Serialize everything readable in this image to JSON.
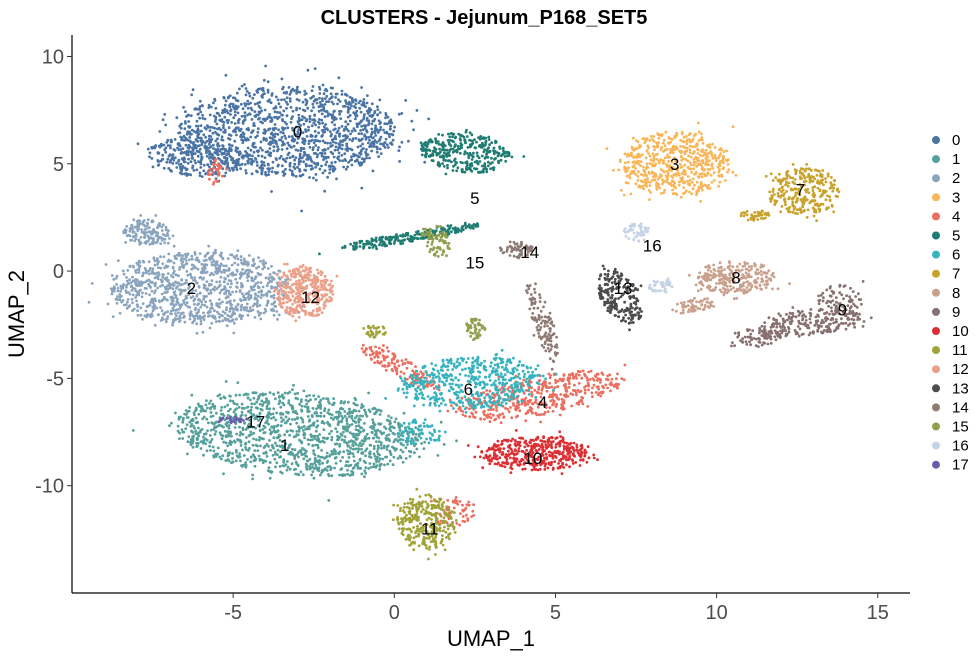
{
  "chart_data": {
    "type": "scatter",
    "title": "CLUSTERS - Jejunum_P168_SET5",
    "xlabel": "UMAP_1",
    "ylabel": "UMAP_2",
    "xlim": [
      -10,
      16
    ],
    "ylim": [
      -15,
      11
    ],
    "xticks": [
      -5,
      0,
      5,
      10,
      15
    ],
    "yticks": [
      10,
      5,
      0,
      -5,
      -10
    ],
    "grid": false,
    "legend_position": "right",
    "clusters": [
      {
        "name": "0",
        "color": "#4A74A4",
        "label_pos": [
          -3.0,
          6.5
        ],
        "shape": [
          [
            -3.3,
            6.5,
            3.4,
            2.1,
            0,
            1300
          ],
          [
            -6.2,
            5.3,
            1.4,
            0.9,
            -0.2,
            250
          ]
        ]
      },
      {
        "name": "1",
        "color": "#56A09C",
        "label_pos": [
          -3.4,
          -8.1
        ],
        "shape": [
          [
            -3.0,
            -7.6,
            3.8,
            1.9,
            -0.15,
            1300
          ]
        ]
      },
      {
        "name": "2",
        "color": "#8BA4BE",
        "label_pos": [
          -6.3,
          -0.8
        ],
        "shape": [
          [
            -6.0,
            -0.8,
            2.8,
            1.7,
            0,
            1000
          ],
          [
            -7.7,
            1.8,
            0.7,
            0.6,
            0,
            140
          ]
        ]
      },
      {
        "name": "3",
        "color": "#F9B557",
        "label_pos": [
          8.7,
          5.0
        ],
        "shape": [
          [
            8.7,
            5.0,
            1.7,
            1.5,
            0,
            560
          ]
        ]
      },
      {
        "name": "4",
        "color": "#EC6E5F",
        "label_pos": [
          4.6,
          -6.1
        ],
        "shape": [
          [
            4.5,
            -5.8,
            2.6,
            0.9,
            0.3,
            450
          ],
          [
            0.2,
            -4.5,
            1.6,
            0.4,
            -0.7,
            140
          ],
          [
            1.8,
            -11.2,
            0.7,
            0.7,
            0,
            60
          ],
          [
            -5.5,
            4.6,
            0.3,
            0.6,
            0,
            30
          ]
        ]
      },
      {
        "name": "5",
        "color": "#1F7C72",
        "label_pos": [
          2.5,
          3.4
        ],
        "shape": [
          [
            2.2,
            5.5,
            1.4,
            0.9,
            -0.2,
            330
          ],
          [
            0.5,
            1.6,
            2.2,
            0.25,
            0.25,
            220
          ]
        ]
      },
      {
        "name": "6",
        "color": "#36B3BE",
        "label_pos": [
          2.3,
          -5.5
        ],
        "shape": [
          [
            2.4,
            -5.2,
            2.2,
            1.2,
            0.1,
            500
          ],
          [
            0.8,
            -7.5,
            0.7,
            0.6,
            0,
            60
          ]
        ]
      },
      {
        "name": "7",
        "color": "#C9A22B",
        "label_pos": [
          12.6,
          3.8
        ],
        "shape": [
          [
            12.7,
            3.7,
            1.1,
            1.1,
            0,
            280
          ],
          [
            11.2,
            2.6,
            0.5,
            0.25,
            0,
            40
          ]
        ]
      },
      {
        "name": "8",
        "color": "#C9A08B",
        "label_pos": [
          10.6,
          -0.3
        ],
        "shape": [
          [
            10.6,
            -0.3,
            1.2,
            0.8,
            0,
            260
          ],
          [
            9.3,
            -1.6,
            0.7,
            0.3,
            0.3,
            60
          ]
        ]
      },
      {
        "name": "9",
        "color": "#887071",
        "label_pos": [
          13.9,
          -1.8
        ],
        "shape": [
          [
            12.9,
            -2.4,
            1.6,
            0.6,
            0.2,
            220
          ],
          [
            13.8,
            -1.4,
            0.7,
            0.8,
            0,
            80
          ],
          [
            11.2,
            -3.1,
            0.8,
            0.4,
            0,
            70
          ]
        ]
      },
      {
        "name": "10",
        "color": "#DD2F33",
        "label_pos": [
          4.3,
          -8.7
        ],
        "shape": [
          [
            4.4,
            -8.5,
            1.7,
            0.8,
            0,
            420
          ]
        ]
      },
      {
        "name": "11",
        "color": "#A1A338",
        "label_pos": [
          1.1,
          -12.0
        ],
        "shape": [
          [
            1.0,
            -11.7,
            0.9,
            1.3,
            0.1,
            300
          ],
          [
            -0.6,
            -2.8,
            0.35,
            0.3,
            0,
            30
          ]
        ]
      },
      {
        "name": "12",
        "color": "#EBA089",
        "label_pos": [
          -2.6,
          -1.2
        ],
        "shape": [
          [
            -2.8,
            -1.0,
            0.9,
            1.2,
            0,
            360
          ]
        ]
      },
      {
        "name": "13",
        "color": "#4A4C4D",
        "label_pos": [
          7.1,
          -0.8
        ],
        "shape": [
          [
            7.0,
            -1.2,
            0.6,
            1.3,
            0.3,
            220
          ]
        ]
      },
      {
        "name": "14",
        "color": "#8E7A74",
        "label_pos": [
          4.2,
          0.9
        ],
        "shape": [
          [
            3.8,
            1.0,
            0.5,
            0.4,
            0,
            60
          ],
          [
            4.6,
            -2.3,
            0.3,
            2.0,
            0.2,
            120
          ]
        ]
      },
      {
        "name": "15",
        "color": "#8F9F4E",
        "label_pos": [
          2.5,
          0.4
        ],
        "shape": [
          [
            1.3,
            1.4,
            0.4,
            0.8,
            0.3,
            80
          ],
          [
            2.5,
            -2.7,
            0.3,
            0.5,
            0,
            50
          ]
        ]
      },
      {
        "name": "16",
        "color": "#C4D3E5",
        "label_pos": [
          8.0,
          1.2
        ],
        "shape": [
          [
            7.5,
            1.8,
            0.4,
            0.4,
            0,
            50
          ],
          [
            8.3,
            -0.7,
            0.4,
            0.3,
            0,
            40
          ]
        ]
      },
      {
        "name": "17",
        "color": "#6A5CAA",
        "label_pos": [
          -4.3,
          -7.0
        ],
        "shape": [
          [
            -5.0,
            -6.9,
            0.5,
            0.15,
            0,
            30
          ]
        ]
      }
    ]
  }
}
